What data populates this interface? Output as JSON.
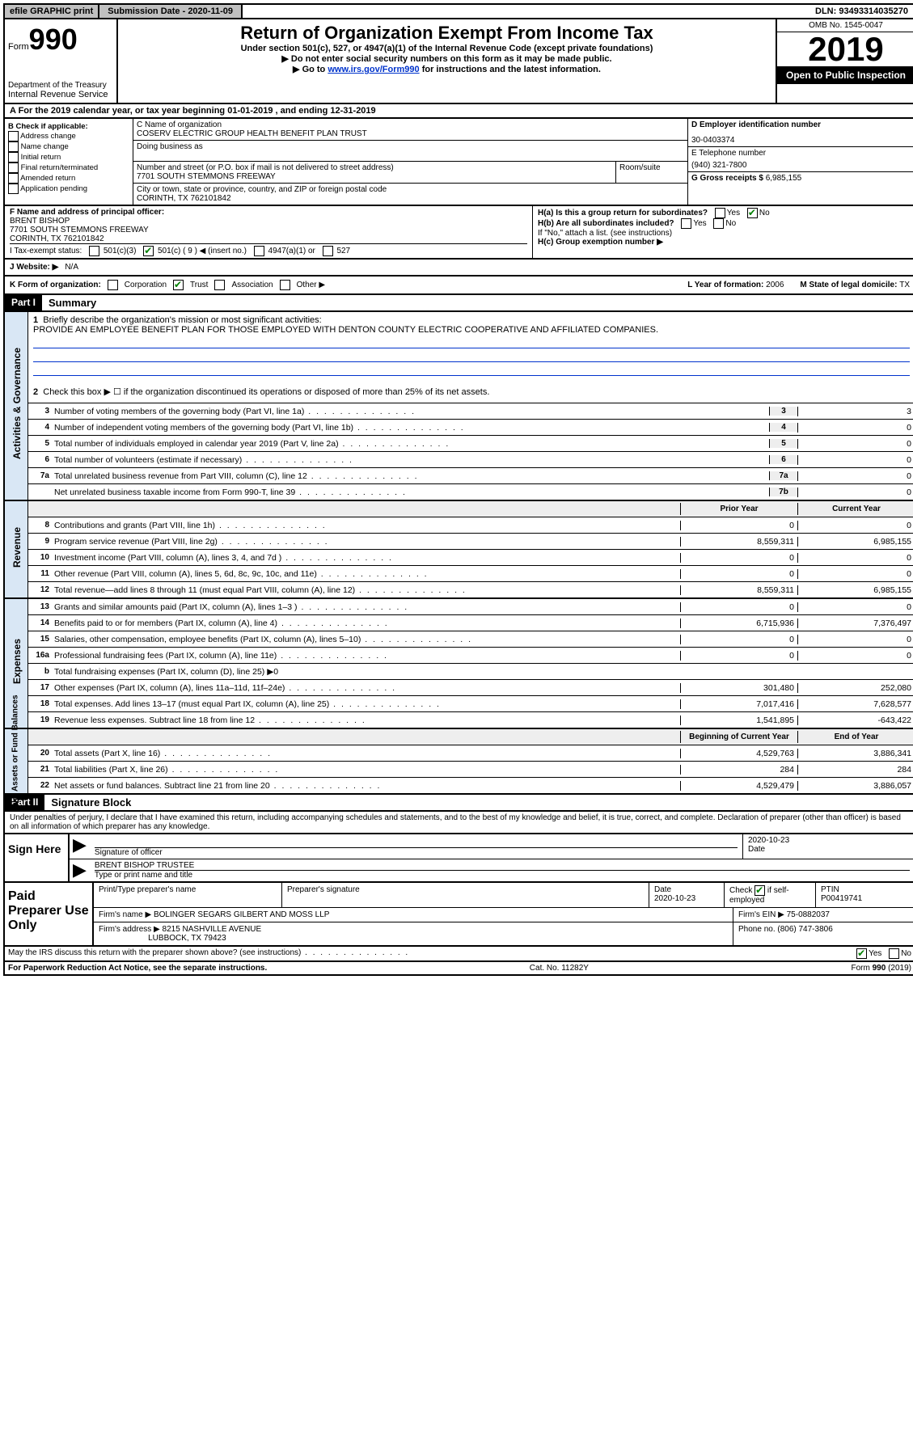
{
  "top": {
    "efile": "efile GRAPHIC print",
    "submission": "Submission Date - 2020-11-09",
    "dln": "DLN: 93493314035270"
  },
  "header": {
    "form_prefix": "Form",
    "form_num": "990",
    "dept1": "Department of the Treasury",
    "dept2": "Internal Revenue Service",
    "title": "Return of Organization Exempt From Income Tax",
    "sub1": "Under section 501(c), 527, or 4947(a)(1) of the Internal Revenue Code (except private foundations)",
    "sub2": "▶ Do not enter social security numbers on this form as it may be made public.",
    "sub3_pre": "▶ Go to ",
    "sub3_link": "www.irs.gov/Form990",
    "sub3_post": " for instructions and the latest information.",
    "omb": "OMB No. 1545-0047",
    "year": "2019",
    "open": "Open to Public Inspection"
  },
  "period": {
    "label_a": "A For the 2019 calendar year, or tax year beginning ",
    "begin": "01-01-2019",
    "mid": " , and ending ",
    "end": "12-31-2019"
  },
  "b": {
    "heading": "B Check if applicable:",
    "opts": [
      "Address change",
      "Name change",
      "Initial return",
      "Final return/terminated",
      "Amended return",
      "Application pending"
    ]
  },
  "c": {
    "name_label": "C Name of organization",
    "name": "COSERV ELECTRIC GROUP HEALTH BENEFIT PLAN TRUST",
    "dba_label": "Doing business as",
    "addr_label": "Number and street (or P.O. box if mail is not delivered to street address)",
    "room_label": "Room/suite",
    "addr": "7701 SOUTH STEMMONS FREEWAY",
    "city_label": "City or town, state or province, country, and ZIP or foreign postal code",
    "city": "CORINTH, TX  762101842"
  },
  "de": {
    "d_label": "D Employer identification number",
    "d_val": "30-0403374",
    "e_label": "E Telephone number",
    "e_val": "(940) 321-7800",
    "g_label": "G Gross receipts $ ",
    "g_val": "6,985,155"
  },
  "f": {
    "label": "F Name and address of principal officer:",
    "name": "BRENT BISHOP",
    "addr1": "7701 SOUTH STEMMONS FREEWAY",
    "addr2": "CORINTH, TX  762101842"
  },
  "h": {
    "a_label": "H(a)  Is this a group return for subordinates?",
    "b_label": "H(b)  Are all subordinates included?",
    "b_note": "If \"No,\" attach a list. (see instructions)",
    "c_label": "H(c)  Group exemption number ▶"
  },
  "i": {
    "label": "I Tax-exempt status:",
    "opt1": "501(c)(3)",
    "opt2": "501(c) ( 9 ) ◀ (insert no.)",
    "opt3": "4947(a)(1) or",
    "opt4": "527"
  },
  "j": {
    "label": "J Website: ▶",
    "val": "N/A"
  },
  "k": {
    "label": "K Form of organization:",
    "opts": [
      "Corporation",
      "Trust",
      "Association",
      "Other ▶"
    ],
    "l_label": "L Year of formation: ",
    "l_val": "2006",
    "m_label": "M State of legal domicile: ",
    "m_val": "TX"
  },
  "part1": {
    "header": "Part I",
    "title": "Summary",
    "q1": "Briefly describe the organization's mission or most significant activities:",
    "mission": "PROVIDE AN EMPLOYEE BENEFIT PLAN FOR THOSE EMPLOYED WITH DENTON COUNTY ELECTRIC COOPERATIVE AND AFFILIATED COMPANIES.",
    "q2": "Check this box ▶ ☐  if the organization discontinued its operations or disposed of more than 25% of its net assets."
  },
  "gov_side": "Activities & Governance",
  "rev_side": "Revenue",
  "exp_side": "Expenses",
  "net_side": "Net Assets or Fund Balances",
  "lines_gov": [
    {
      "n": "3",
      "d": "Number of voting members of the governing body (Part VI, line 1a)",
      "b": "3",
      "v": "3"
    },
    {
      "n": "4",
      "d": "Number of independent voting members of the governing body (Part VI, line 1b)",
      "b": "4",
      "v": "0"
    },
    {
      "n": "5",
      "d": "Total number of individuals employed in calendar year 2019 (Part V, line 2a)",
      "b": "5",
      "v": "0"
    },
    {
      "n": "6",
      "d": "Total number of volunteers (estimate if necessary)",
      "b": "6",
      "v": "0"
    },
    {
      "n": "7a",
      "d": "Total unrelated business revenue from Part VIII, column (C), line 12",
      "b": "7a",
      "v": "0"
    },
    {
      "n": "",
      "d": "Net unrelated business taxable income from Form 990-T, line 39",
      "b": "7b",
      "v": "0"
    }
  ],
  "header_cols": {
    "prior": "Prior Year",
    "current": "Current Year"
  },
  "lines_rev": [
    {
      "n": "8",
      "d": "Contributions and grants (Part VIII, line 1h)",
      "p": "0",
      "c": "0"
    },
    {
      "n": "9",
      "d": "Program service revenue (Part VIII, line 2g)",
      "p": "8,559,311",
      "c": "6,985,155"
    },
    {
      "n": "10",
      "d": "Investment income (Part VIII, column (A), lines 3, 4, and 7d )",
      "p": "0",
      "c": "0"
    },
    {
      "n": "11",
      "d": "Other revenue (Part VIII, column (A), lines 5, 6d, 8c, 9c, 10c, and 11e)",
      "p": "0",
      "c": "0"
    },
    {
      "n": "12",
      "d": "Total revenue—add lines 8 through 11 (must equal Part VIII, column (A), line 12)",
      "p": "8,559,311",
      "c": "6,985,155"
    }
  ],
  "lines_exp": [
    {
      "n": "13",
      "d": "Grants and similar amounts paid (Part IX, column (A), lines 1–3 )",
      "p": "0",
      "c": "0"
    },
    {
      "n": "14",
      "d": "Benefits paid to or for members (Part IX, column (A), line 4)",
      "p": "6,715,936",
      "c": "7,376,497"
    },
    {
      "n": "15",
      "d": "Salaries, other compensation, employee benefits (Part IX, column (A), lines 5–10)",
      "p": "0",
      "c": "0"
    },
    {
      "n": "16a",
      "d": "Professional fundraising fees (Part IX, column (A), line 11e)",
      "p": "0",
      "c": "0"
    },
    {
      "n": "b",
      "d": "Total fundraising expenses (Part IX, column (D), line 25) ▶0",
      "p": "",
      "c": "",
      "shade": true
    },
    {
      "n": "17",
      "d": "Other expenses (Part IX, column (A), lines 11a–11d, 11f–24e)",
      "p": "301,480",
      "c": "252,080"
    },
    {
      "n": "18",
      "d": "Total expenses. Add lines 13–17 (must equal Part IX, column (A), line 25)",
      "p": "7,017,416",
      "c": "7,628,577"
    },
    {
      "n": "19",
      "d": "Revenue less expenses. Subtract line 18 from line 12",
      "p": "1,541,895",
      "c": "-643,422"
    }
  ],
  "header_cols2": {
    "begin": "Beginning of Current Year",
    "end": "End of Year"
  },
  "lines_net": [
    {
      "n": "20",
      "d": "Total assets (Part X, line 16)",
      "p": "4,529,763",
      "c": "3,886,341"
    },
    {
      "n": "21",
      "d": "Total liabilities (Part X, line 26)",
      "p": "284",
      "c": "284"
    },
    {
      "n": "22",
      "d": "Net assets or fund balances. Subtract line 21 from line 20",
      "p": "4,529,479",
      "c": "3,886,057"
    }
  ],
  "part2": {
    "header": "Part II",
    "title": "Signature Block",
    "perjury": "Under penalties of perjury, I declare that I have examined this return, including accompanying schedules and statements, and to the best of my knowledge and belief, it is true, correct, and complete. Declaration of preparer (other than officer) is based on all information of which preparer has any knowledge."
  },
  "sign": {
    "left": "Sign Here",
    "sig_label": "Signature of officer",
    "date": "2020-10-23",
    "date_label": "Date",
    "name": "BRENT BISHOP TRUSTEE",
    "name_label": "Type or print name and title"
  },
  "prep": {
    "left": "Paid Preparer Use Only",
    "h1": "Print/Type preparer's name",
    "h2": "Preparer's signature",
    "h3": "Date",
    "date": "2020-10-23",
    "h4_pre": "Check",
    "h4_post": "if self-employed",
    "h5": "PTIN",
    "ptin": "P00419741",
    "firm_label": "Firm's name      ▶ ",
    "firm": "BOLINGER SEGARS GILBERT AND MOSS LLP",
    "ein_label": "Firm's EIN ▶ ",
    "ein": "75-0882037",
    "addr_label": "Firm's address ▶ ",
    "addr1": "8215 NASHVILLE AVENUE",
    "addr2": "LUBBOCK, TX  79423",
    "phone_label": "Phone no. ",
    "phone": "(806) 747-3806"
  },
  "discuss": "May the IRS discuss this return with the preparer shown above? (see instructions)",
  "footer": {
    "left": "For Paperwork Reduction Act Notice, see the separate instructions.",
    "mid": "Cat. No. 11282Y",
    "right": "Form 990 (2019)"
  }
}
